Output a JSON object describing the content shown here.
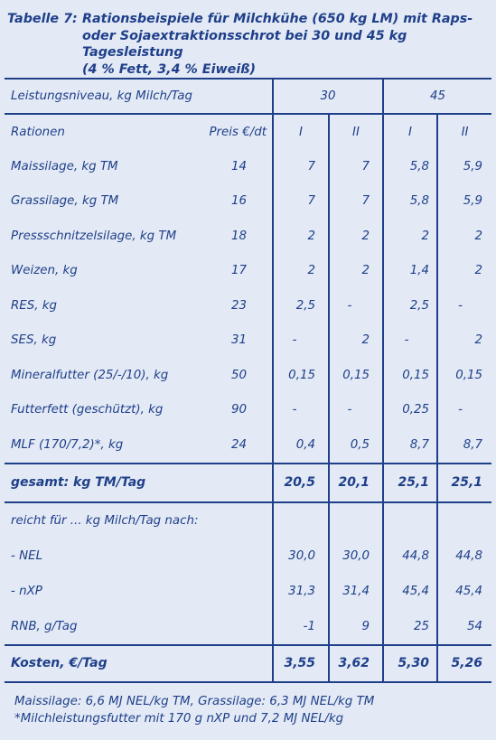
{
  "caption": {
    "number": "Tabelle 7:",
    "lines": [
      "Rationsbeispiele für Milchkühe (650 kg LM) mit Raps-",
      "oder Sojaextraktionsschrot bei 30 und 45 kg Tagesleistung",
      "(4 % Fett, 3,4 % Eiweiß)"
    ]
  },
  "table": {
    "level_label": "Leistungsniveau, kg Milch/Tag",
    "levels": [
      "30",
      "45"
    ],
    "rations_label": "Rationen",
    "price_label": "Preis €/dt",
    "ration_ids": [
      "I",
      "II",
      "I",
      "II"
    ],
    "rows": [
      {
        "name": "Maissilage, kg TM",
        "price": "14",
        "values": [
          "7",
          "7",
          "5,8",
          "5,9"
        ]
      },
      {
        "name": "Grassilage, kg TM",
        "price": "16",
        "values": [
          "7",
          "7",
          "5,8",
          "5,9"
        ]
      },
      {
        "name": "Pressschnitzelsilage, kg TM",
        "price": "18",
        "values": [
          "2",
          "2",
          "2",
          "2"
        ]
      },
      {
        "name": "Weizen, kg",
        "price": "17",
        "values": [
          "2",
          "2",
          "1,4",
          "2"
        ]
      },
      {
        "name": "RES, kg",
        "price": "23",
        "values": [
          "2,5",
          "-",
          "2,5",
          "-"
        ]
      },
      {
        "name": "SES, kg",
        "price": "31",
        "values": [
          "-",
          "2",
          "-",
          "2"
        ]
      },
      {
        "name": "Mineralfutter (25/-/10), kg",
        "price": "50",
        "values": [
          "0,15",
          "0,15",
          "0,15",
          "0,15"
        ]
      },
      {
        "name": "Futterfett (geschützt), kg",
        "price": "90",
        "values": [
          "-",
          "-",
          "0,25",
          "-"
        ]
      },
      {
        "name": "MLF (170/7,2)*, kg",
        "price": "24",
        "values": [
          "0,4",
          "0,5",
          "8,7",
          "8,7"
        ]
      }
    ],
    "total": {
      "label": "gesamt: kg TM/Tag",
      "values": [
        "20,5",
        "20,1",
        "25,1",
        "25,1"
      ]
    },
    "suffices_label": "reicht für ... kg Milch/Tag nach:",
    "supply_rows": [
      {
        "name": "- NEL",
        "values": [
          "30,0",
          "30,0",
          "44,8",
          "44,8"
        ]
      },
      {
        "name": "- nXP",
        "values": [
          "31,3",
          "31,4",
          "45,4",
          "45,4"
        ]
      },
      {
        "name": "RNB, g/Tag",
        "values": [
          "-1",
          "9",
          "25",
          "54"
        ]
      }
    ],
    "costs": {
      "label": "Kosten, €/Tag",
      "values": [
        "3,55",
        "3,62",
        "5,30",
        "5,26"
      ]
    }
  },
  "notes": [
    "Maissilage: 6,6 MJ NEL/kg TM, Grassilage: 6,3 MJ NEL/kg TM",
    "*Milchleistungsfutter mit 170 g nXP und 7,2 MJ NEL/kg"
  ],
  "colors": {
    "text": "#1f3f8a",
    "background": "#e3eaf5"
  }
}
